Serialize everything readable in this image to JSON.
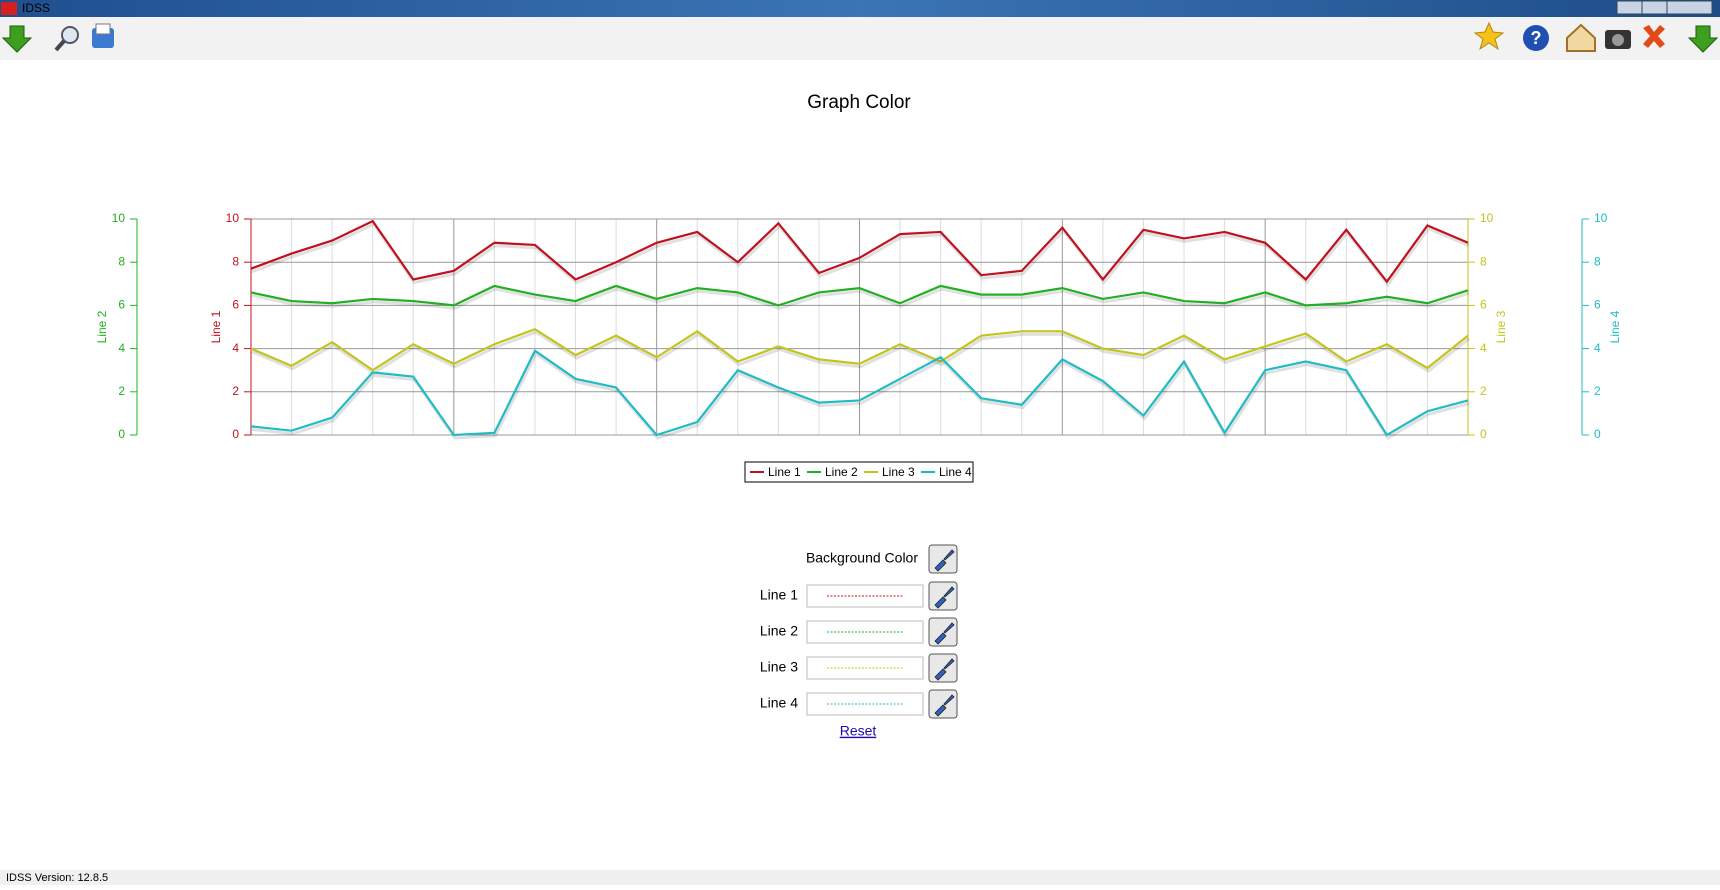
{
  "window": {
    "title": "IDSS"
  },
  "chart_data": {
    "type": "line",
    "title": "Graph Color",
    "grid": true,
    "legend": "bottom",
    "axes": [
      {
        "label": "Line 1",
        "side": "left",
        "color": "#c0121e",
        "ylim": [
          0,
          10
        ],
        "yticks": [
          0,
          2,
          4,
          6,
          8,
          10
        ]
      },
      {
        "label": "Line 2",
        "side": "left",
        "color": "#22b022",
        "ylim": [
          0,
          10
        ],
        "yticks": [
          0,
          2,
          4,
          6,
          8,
          10
        ]
      },
      {
        "label": "Line 3",
        "side": "right",
        "color": "#c4c41e",
        "ylim": [
          0,
          10
        ],
        "yticks": [
          0,
          2,
          4,
          6,
          8,
          10
        ]
      },
      {
        "label": "Line 4",
        "side": "right",
        "color": "#1fbcc4",
        "ylim": [
          0,
          10
        ],
        "yticks": [
          0,
          2,
          4,
          6,
          8,
          10
        ]
      }
    ],
    "series": [
      {
        "name": "Line 1",
        "color": "#c0121e",
        "axis": 0,
        "values": [
          7.7,
          8.4,
          9.0,
          9.9,
          7.2,
          7.6,
          8.9,
          8.8,
          7.2,
          8.0,
          8.9,
          9.4,
          8.0,
          9.8,
          7.5,
          8.2,
          9.3,
          9.4,
          7.4,
          7.6,
          9.6,
          7.2,
          9.5,
          9.1,
          9.4,
          8.9,
          7.2,
          9.5,
          7.1,
          9.7,
          8.9
        ]
      },
      {
        "name": "Line 2",
        "color": "#22b022",
        "axis": 1,
        "values": [
          6.6,
          6.2,
          6.1,
          6.3,
          6.2,
          6.0,
          6.9,
          6.5,
          6.2,
          6.9,
          6.3,
          6.8,
          6.6,
          6.0,
          6.6,
          6.8,
          6.1,
          6.9,
          6.5,
          6.5,
          6.8,
          6.3,
          6.6,
          6.2,
          6.1,
          6.6,
          6.0,
          6.1,
          6.4,
          6.1,
          6.7
        ]
      },
      {
        "name": "Line 3",
        "color": "#c4c41e",
        "axis": 2,
        "values": [
          4.0,
          3.2,
          4.3,
          3.0,
          4.2,
          3.3,
          4.2,
          4.9,
          3.7,
          4.6,
          3.6,
          4.8,
          3.4,
          4.1,
          3.5,
          3.3,
          4.2,
          3.4,
          4.6,
          4.8,
          4.8,
          4.0,
          3.7,
          4.6,
          3.5,
          4.1,
          4.7,
          3.4,
          4.2,
          3.1,
          4.6
        ]
      },
      {
        "name": "Line 4",
        "color": "#1fbcc4",
        "axis": 3,
        "values": [
          0.4,
          0.2,
          0.8,
          2.9,
          2.7,
          0.0,
          0.1,
          3.9,
          2.6,
          2.2,
          0.0,
          0.6,
          3.0,
          2.2,
          1.5,
          1.6,
          2.6,
          3.6,
          1.7,
          1.4,
          3.5,
          2.5,
          0.9,
          3.4,
          0.1,
          3.0,
          3.4,
          3.0,
          0.0,
          1.1,
          1.6
        ]
      }
    ]
  },
  "settings": {
    "background_label": "Background Color",
    "reset": "Reset"
  },
  "status": {
    "version": "IDSS Version: 12.8.5"
  }
}
